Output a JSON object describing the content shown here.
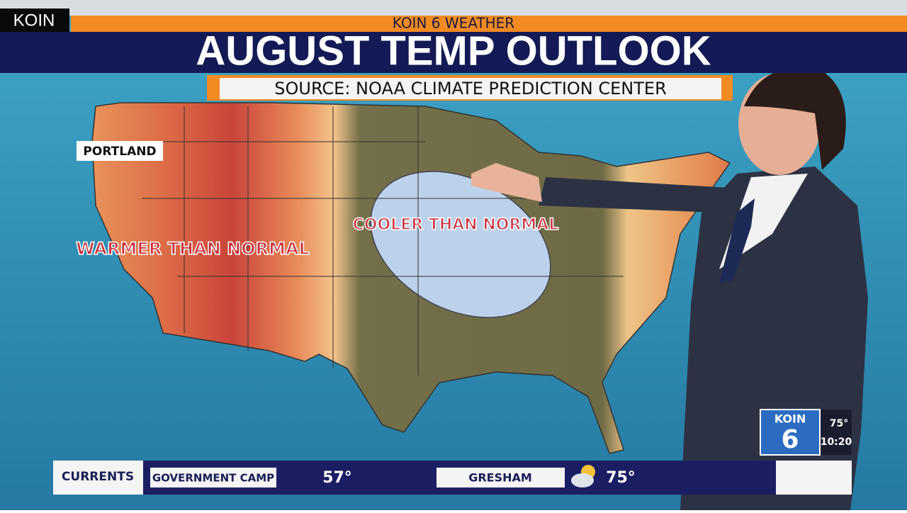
{
  "bug": "KOIN",
  "header": {
    "kicker": "KOIN 6 WEATHER",
    "title": "AUGUST TEMP OUTLOOK",
    "source": "SOURCE: NOAA CLIMATE PREDICTION CENTER"
  },
  "map": {
    "city": "PORTLAND",
    "labels": [
      "WARMER THAN NORMAL",
      "COOLER THAN NORMAL"
    ]
  },
  "ticker": {
    "label": "CURRENTS",
    "items": [
      {
        "place": "GOVERNMENT CAMP",
        "temp": "57°"
      },
      {
        "place": "GRESHAM",
        "temp": "75°"
      }
    ]
  },
  "logo": {
    "name": "KOIN",
    "channel": "6",
    "temp": "75°",
    "time": "10:20"
  }
}
